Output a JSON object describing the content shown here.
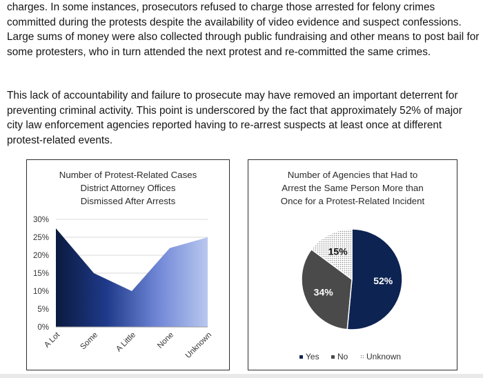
{
  "document": {
    "paragraphs": [
      "charges. In some instances, prosecutors refused to charge those arrested for felony crimes committed during the protests despite the availability of video evidence and suspect confessions. Large sums of money were also collected through public fundraising and other means to post bail for some protesters, who in turn attended the next protest and re-committed the same crimes.",
      "This lack of accountability and failure to prosecute may have removed an important deterrent for preventing criminal activity. This point is underscored by the fact that approximately 52% of major city law enforcement agencies reported having to re-arrest suspects at least once at different protest-related events."
    ]
  },
  "chart_data": [
    {
      "type": "area",
      "title_lines": [
        "Number of Protest-Related Cases",
        "District Attorney Offices",
        "Dismissed After Arrests"
      ],
      "categories": [
        "A Lot",
        "Some",
        "A Little",
        "None",
        "Unknown"
      ],
      "values": [
        27.5,
        15,
        10,
        22,
        25
      ],
      "ylim": [
        0,
        30
      ],
      "yticks": [
        "0%",
        "5%",
        "10%",
        "15%",
        "20%",
        "25%",
        "30%"
      ],
      "ytick_values": [
        0,
        5,
        10,
        15,
        20,
        25,
        30
      ],
      "grid": true,
      "fill_gradient": [
        "#0a1a3f",
        "#1f3a8a",
        "#6f86d6",
        "#b9c7ef"
      ]
    },
    {
      "type": "pie",
      "title_lines": [
        "Number of Agencies that Had to",
        "Arrest the Same Person More than",
        "Once for a Protest-Related Incident"
      ],
      "slices": [
        {
          "label": "Yes",
          "value": 52,
          "display": "52%",
          "color": "#0d2352"
        },
        {
          "label": "No",
          "value": 34,
          "display": "34%",
          "color": "#4a4a4a"
        },
        {
          "label": "Unknown",
          "value": 15,
          "display": "15%",
          "color": "#e6e6e6"
        }
      ],
      "legend_position": "bottom"
    }
  ]
}
